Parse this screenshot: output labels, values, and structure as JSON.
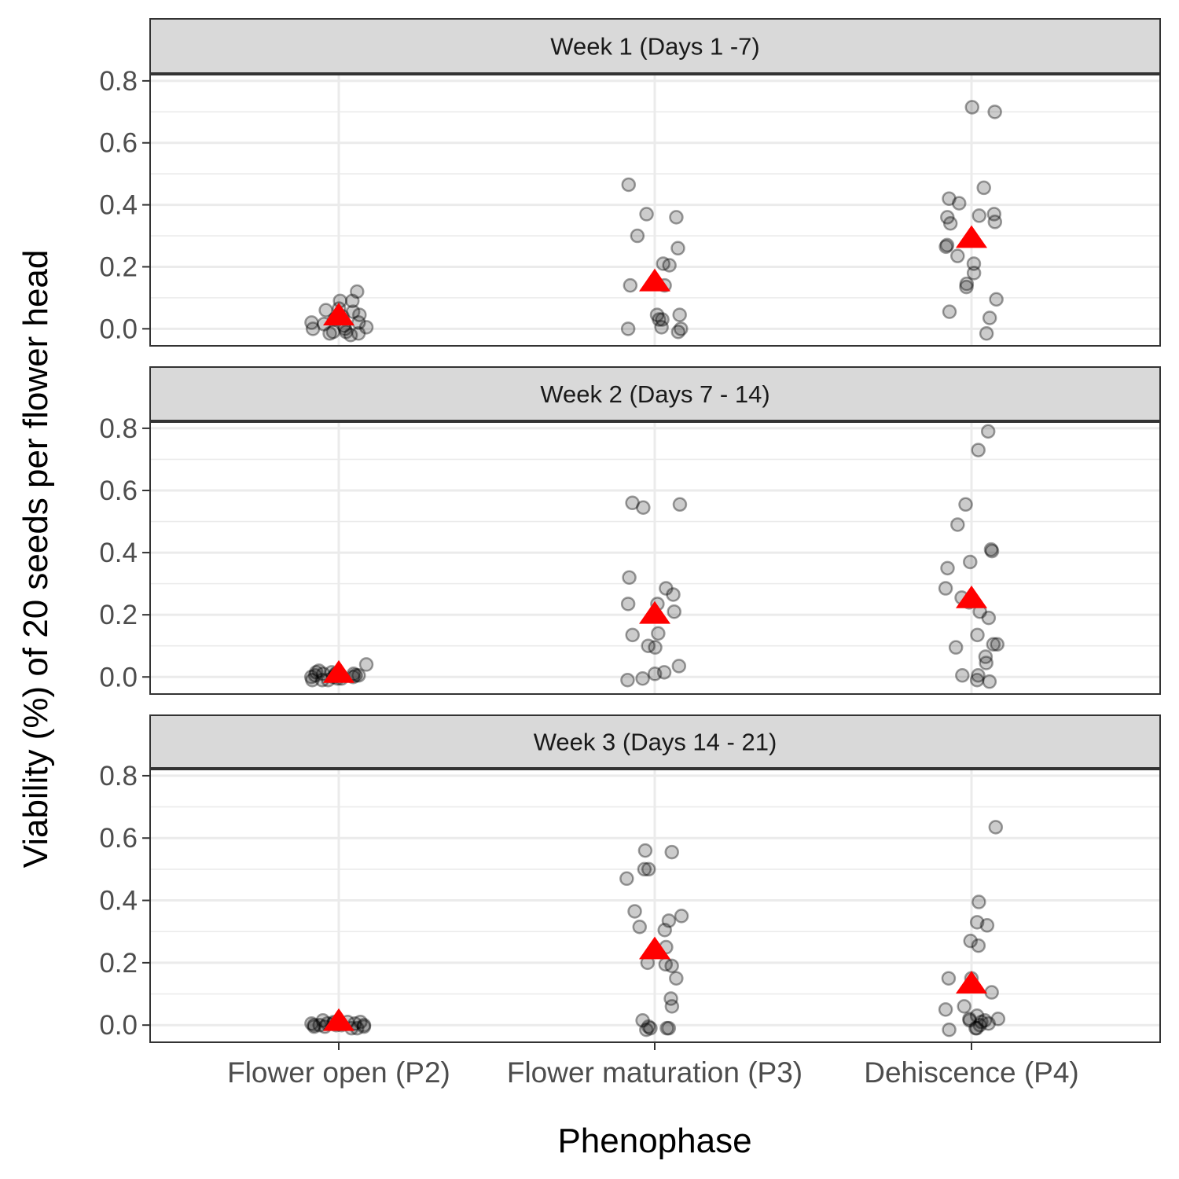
{
  "chart_data": {
    "type": "scatter",
    "subtype": "faceted jittered strip plot with mean markers",
    "xlabel": "Phenophase",
    "ylabel": "Viability (%) of 20 seeds per flower head",
    "categories": [
      "Flower open (P2)",
      "Flower maturation (P3)",
      "Dehiscence (P4)"
    ],
    "ylim": [
      -0.055,
      0.82
    ],
    "yticks": [
      0.0,
      0.2,
      0.4,
      0.6,
      0.8
    ],
    "ytick_labels": [
      "0.0",
      "0.2",
      "0.4",
      "0.6",
      "0.8"
    ],
    "grid": true,
    "legend": "none",
    "colors": {
      "points": "#000000",
      "mean_marker": "#ff0000",
      "strip": "#d9d9d9"
    },
    "panels": [
      {
        "title": "Week 1 (Days 1 -7)",
        "groups": [
          {
            "category": "Flower open (P2)",
            "mean": 0.04,
            "values": [
              0.09,
              0.04,
              0.035,
              0.06,
              0.12,
              0.055,
              0.065,
              0.09,
              0.035,
              0.02,
              0.01,
              0.0,
              -0.01,
              -0.015,
              -0.015,
              0.03,
              0.015,
              0.005,
              -0.02,
              0.045,
              0.02,
              0.0,
              -0.01
            ]
          },
          {
            "category": "Flower maturation (P3)",
            "mean": 0.15,
            "values": [
              0.465,
              0.37,
              0.36,
              0.3,
              0.26,
              0.21,
              0.205,
              0.14,
              0.14,
              0.045,
              0.03,
              0.045,
              0.03,
              0.005,
              0.0,
              -0.01,
              0.0
            ]
          },
          {
            "category": "Dehiscence (P4)",
            "mean": 0.29,
            "values": [
              0.715,
              0.7,
              0.455,
              0.42,
              0.405,
              0.37,
              0.365,
              0.345,
              0.36,
              0.34,
              0.27,
              0.265,
              0.235,
              0.21,
              0.18,
              0.145,
              0.135,
              0.095,
              0.055,
              0.035,
              -0.015
            ]
          }
        ]
      },
      {
        "title": "Week 2 (Days 7 - 14)",
        "groups": [
          {
            "category": "Flower open (P2)",
            "mean": 0.01,
            "values": [
              0.04,
              0.015,
              0.01,
              0.005,
              0.0,
              -0.01,
              0.02,
              0.015,
              0.01,
              0.0,
              -0.01,
              -0.005,
              0.005,
              0.01,
              -0.01,
              0.005,
              0.0,
              -0.005,
              0.01
            ]
          },
          {
            "category": "Flower maturation (P3)",
            "mean": 0.2,
            "values": [
              0.56,
              0.555,
              0.545,
              0.32,
              0.285,
              0.265,
              0.235,
              0.235,
              0.21,
              0.14,
              0.135,
              0.1,
              0.095,
              0.035,
              0.015,
              0.01,
              -0.005,
              -0.01
            ]
          },
          {
            "category": "Dehiscence (P4)",
            "mean": 0.25,
            "values": [
              0.79,
              0.73,
              0.555,
              0.49,
              0.41,
              0.405,
              0.37,
              0.35,
              0.285,
              0.255,
              0.24,
              0.21,
              0.19,
              0.135,
              0.105,
              0.105,
              0.095,
              0.065,
              0.045,
              0.005,
              0.005,
              -0.01,
              -0.015
            ]
          }
        ]
      },
      {
        "title": "Week 3 (Days 14 - 21)",
        "groups": [
          {
            "category": "Flower open (P2)",
            "mean": 0.01,
            "values": [
              0.01,
              0.005,
              0.0,
              -0.005,
              -0.01,
              0.015,
              0.005,
              0.0,
              -0.005,
              0.01,
              0.0,
              -0.01,
              0.005,
              0.0,
              -0.005,
              0.01,
              0.0,
              0.005
            ]
          },
          {
            "category": "Flower maturation (P3)",
            "mean": 0.24,
            "values": [
              0.56,
              0.555,
              0.5,
              0.5,
              0.47,
              0.365,
              0.35,
              0.335,
              0.315,
              0.305,
              0.25,
              0.2,
              0.195,
              0.19,
              0.15,
              0.085,
              0.06,
              0.015,
              -0.005,
              -0.015,
              -0.01,
              -0.01,
              -0.01
            ]
          },
          {
            "category": "Dehiscence (P4)",
            "mean": 0.13,
            "values": [
              0.635,
              0.395,
              0.33,
              0.32,
              0.27,
              0.255,
              0.15,
              0.15,
              0.105,
              0.06,
              0.05,
              0.03,
              0.02,
              0.015,
              0.015,
              0.01,
              0.005,
              0.0,
              -0.01,
              -0.01,
              -0.015,
              0.02
            ]
          }
        ]
      }
    ]
  }
}
